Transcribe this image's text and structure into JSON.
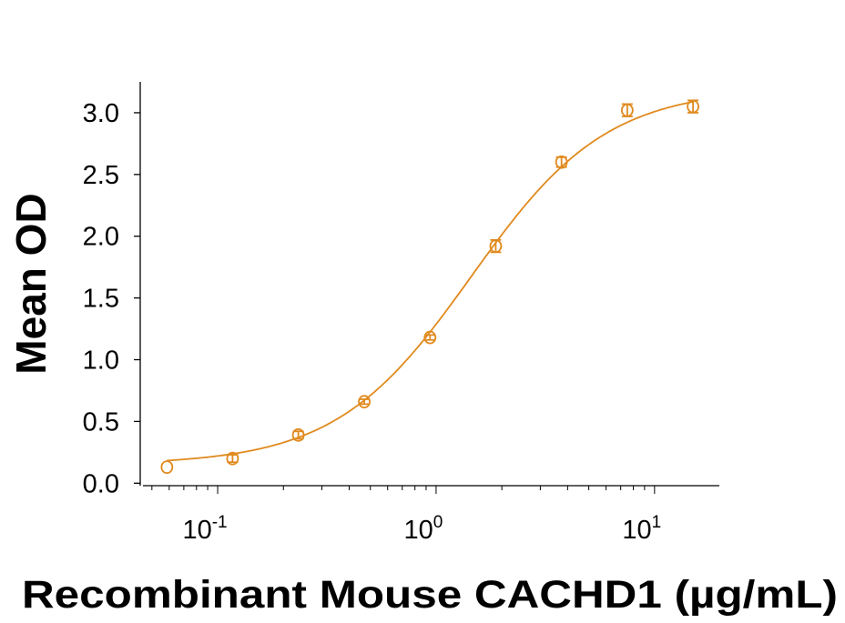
{
  "chart_data": {
    "type": "scatter",
    "title": "",
    "xlabel": "Recombinant Mouse CACHD1 (µg/mL)",
    "ylabel": "Mean OD",
    "x_scale": "log",
    "xlim": [
      0.0455,
      19.8
    ],
    "ylim": [
      -0.02,
      3.25
    ],
    "x_ticks": [
      {
        "value": 0.1,
        "base": "10",
        "exp": "-1"
      },
      {
        "value": 1,
        "base": "10",
        "exp": "0"
      },
      {
        "value": 10,
        "base": "10",
        "exp": "1"
      }
    ],
    "y_ticks": [
      {
        "value": 0,
        "label": "0.0"
      },
      {
        "value": 0.5,
        "label": "0.5"
      },
      {
        "value": 1,
        "label": "1.0"
      },
      {
        "value": 1.5,
        "label": "1.5"
      },
      {
        "value": 2,
        "label": "2.0"
      },
      {
        "value": 2.5,
        "label": "2.5"
      },
      {
        "value": 3,
        "label": "3.0"
      }
    ],
    "grid": false,
    "legend": "none",
    "color": "#E08A1E",
    "series": [
      {
        "x": [
          0.0586,
          0.117,
          0.234,
          0.469,
          0.938,
          1.875,
          3.75,
          7.5,
          15
        ],
        "y": [
          0.13,
          0.2,
          0.39,
          0.66,
          1.18,
          1.92,
          2.6,
          3.02,
          3.05
        ],
        "error": [
          0.01,
          0.03,
          0.03,
          0.02,
          0.02,
          0.05,
          0.04,
          0.05,
          0.05
        ],
        "marker": "open-circle"
      }
    ],
    "fit_curve": {
      "model": "4PL",
      "bottom": 0.15,
      "top": 3.2,
      "ec50": 1.45,
      "hill": 1.4,
      "x_range": [
        0.0586,
        15
      ]
    }
  }
}
